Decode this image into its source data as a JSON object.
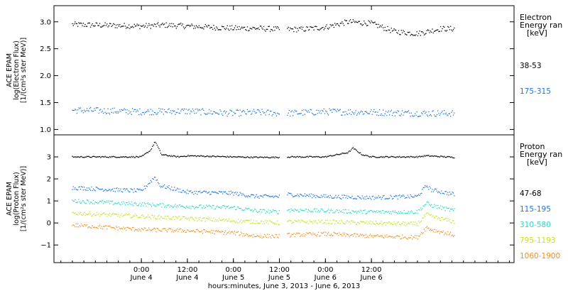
{
  "chart_data": [
    {
      "type": "scatter",
      "panel": "electron",
      "ylabel_lines": [
        "ACE EPAM",
        "log(Electron Flux)",
        "[1/(cm²s ster MeV)]"
      ],
      "ylim": [
        0.9,
        3.3
      ],
      "yticks": [
        1.0,
        1.5,
        2.0,
        2.5,
        3.0
      ],
      "ytick_labels": [
        "1.0",
        "1.5",
        "2.0",
        "2.5",
        "3.0"
      ],
      "legend_title": [
        "Electron",
        "Energy ran",
        "[keV]"
      ],
      "series": [
        {
          "name": "38-53",
          "color": "#000000",
          "x": [
            -0.75,
            0.0,
            0.25,
            0.5,
            0.75,
            1.0,
            1.25,
            1.5,
            1.58,
            1.75,
            2.0,
            2.25,
            2.5,
            2.75,
            3.0,
            3.25,
            3.4
          ],
          "y": [
            2.95,
            2.92,
            2.94,
            2.92,
            2.9,
            2.88,
            2.88,
            2.86,
            2.86,
            2.86,
            2.9,
            3.0,
            2.97,
            2.82,
            2.78,
            2.87,
            2.87
          ]
        },
        {
          "name": "175-315",
          "color": "#1e78d8",
          "x": [
            -0.75,
            0.0,
            0.5,
            1.0,
            1.25,
            1.5,
            1.58,
            2.0,
            2.5,
            3.0,
            3.4
          ],
          "y": [
            1.36,
            1.33,
            1.34,
            1.3,
            1.32,
            1.3,
            1.3,
            1.33,
            1.32,
            1.3,
            1.3
          ]
        }
      ]
    },
    {
      "type": "scatter",
      "panel": "proton",
      "ylabel_lines": [
        "ACE EPAM",
        "log(Proton Flux)",
        "[1/(cm²s ster MeV)]"
      ],
      "ylim": [
        -1.8,
        4.0
      ],
      "yticks": [
        -1,
        0,
        1,
        2,
        3
      ],
      "ytick_labels": [
        "−1",
        "0",
        "1",
        "2",
        "3"
      ],
      "legend_title": [
        "Proton",
        "Energy ran",
        "[keV]"
      ],
      "series": [
        {
          "name": "47-68",
          "color": "#000000",
          "x": [
            -0.75,
            0.0,
            0.1,
            0.15,
            0.22,
            0.4,
            0.5,
            1.0,
            1.25,
            1.5,
            1.58,
            2.0,
            2.25,
            2.3,
            2.4,
            2.5,
            3.0,
            3.1,
            3.4
          ],
          "y": [
            3.0,
            3.0,
            3.3,
            3.7,
            3.1,
            3.0,
            3.05,
            3.0,
            2.98,
            2.98,
            3.0,
            3.0,
            3.2,
            3.4,
            3.1,
            3.0,
            3.0,
            3.05,
            2.98
          ]
        },
        {
          "name": "115-195",
          "color": "#1e78d8",
          "x": [
            -0.75,
            0.0,
            0.15,
            0.2,
            0.5,
            1.0,
            1.25,
            1.5,
            1.58,
            2.0,
            2.5,
            3.0,
            3.1,
            3.15,
            3.4
          ],
          "y": [
            1.6,
            1.45,
            2.1,
            1.7,
            1.4,
            1.35,
            1.2,
            1.2,
            1.3,
            1.2,
            1.15,
            1.2,
            1.7,
            1.5,
            1.3
          ]
        },
        {
          "name": "310-580",
          "color": "#28d8c8",
          "x": [
            -0.75,
            0.0,
            0.5,
            1.0,
            1.25,
            1.5,
            1.58,
            2.0,
            2.5,
            3.0,
            3.1,
            3.15,
            3.4
          ],
          "y": [
            1.0,
            0.85,
            0.75,
            0.7,
            0.55,
            0.5,
            0.6,
            0.55,
            0.5,
            0.5,
            0.9,
            0.8,
            0.55
          ]
        },
        {
          "name": "795-1193",
          "color": "#c8e020",
          "x": [
            -0.75,
            0.0,
            0.5,
            1.0,
            1.25,
            1.5,
            1.58,
            2.0,
            2.5,
            3.0,
            3.1,
            3.15,
            3.4
          ],
          "y": [
            0.45,
            0.3,
            0.2,
            0.1,
            0.05,
            0.0,
            0.05,
            0.05,
            0.0,
            -0.05,
            0.4,
            0.3,
            0.05
          ]
        },
        {
          "name": "1060-1900",
          "color": "#f09020",
          "x": [
            -0.75,
            0.0,
            0.5,
            1.0,
            1.25,
            1.5,
            1.58,
            2.0,
            2.5,
            3.0,
            3.1,
            3.15,
            3.4
          ],
          "y": [
            -0.1,
            -0.3,
            -0.35,
            -0.45,
            -0.6,
            -0.6,
            -0.55,
            -0.5,
            -0.6,
            -0.65,
            -0.2,
            -0.3,
            -0.55
          ]
        }
      ]
    }
  ],
  "x_axis": {
    "xlim": [
      -0.95,
      4.05
    ],
    "data_gap": [
      1.5,
      1.58
    ],
    "ticks": [
      {
        "x": 0.0,
        "time": "0:00",
        "date": "June 4"
      },
      {
        "x": 0.5,
        "time": "12:00",
        "date": "June 4"
      },
      {
        "x": 1.0,
        "time": "0:00",
        "date": "June 5"
      },
      {
        "x": 1.5,
        "time": "12:00",
        "date": "June 5"
      },
      {
        "x": 2.0,
        "time": "0:00",
        "date": "June 6"
      },
      {
        "x": 2.5,
        "time": "12:00",
        "date": "June 6"
      }
    ],
    "xlabel": "hours:minutes, June  3, 2013 - June  6, 2013"
  }
}
